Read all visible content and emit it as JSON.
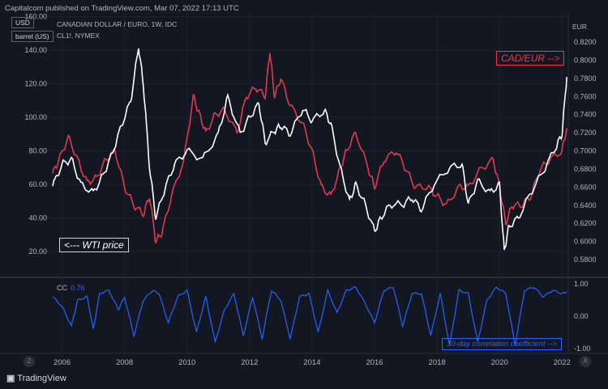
{
  "header": {
    "publisher": "Capitalcom published on TradingView.com, Mar 07, 2022 17:13 UTC",
    "instrument_1": "CANADIAN DOLLAR / EURO, 1W, IDC",
    "instrument_2": "CL1!, NYMEX",
    "left_unit_1": "USD",
    "left_unit_2": "barrel (US)",
    "right_unit": "EUR"
  },
  "annotations": {
    "cad_eur": "CAD/EUR -->",
    "wti": "<--- WTI price",
    "corr": "30-day correlation coefficient -->"
  },
  "indicator": {
    "label": "CC",
    "value": "0.76"
  },
  "footer": {
    "brand": "TradingView",
    "z_button": "Z",
    "a_button": "A"
  },
  "colors": {
    "background": "#131722",
    "wti": "#ffffff",
    "cad_eur": "#e03a4e",
    "cc": "#2962ff"
  },
  "chart_data": [
    {
      "type": "line",
      "title": "CANADIAN DOLLAR / EURO, 1W, IDC",
      "left_axis": {
        "label": "USD barrel (US)",
        "ticks": [
          "160.00",
          "140.00",
          "120.00",
          "100.00",
          "80.00",
          "60.00",
          "40.00",
          "20.00"
        ],
        "range": [
          0,
          160
        ]
      },
      "right_axis": {
        "label": "EUR",
        "ticks": [
          "0.8200",
          "0.8000",
          "0.7800",
          "0.7600",
          "0.7400",
          "0.7200",
          "0.7000",
          "0.6800",
          "0.6600",
          "0.6400",
          "0.6200",
          "0.6000",
          "0.5800"
        ],
        "range": [
          0.57,
          0.83
        ]
      },
      "x_ticks": [
        "2006",
        "2008",
        "2010",
        "2012",
        "2014",
        "2016",
        "2018",
        "2020",
        "2022"
      ],
      "grid": true,
      "series": [
        {
          "name": "CL1!, NYMEX",
          "axis": "left",
          "x": [
            2005.7,
            2006.0,
            2006.3,
            2006.6,
            2007.0,
            2007.3,
            2007.6,
            2007.9,
            2008.2,
            2008.45,
            2008.6,
            2008.8,
            2009.0,
            2009.3,
            2009.6,
            2010.0,
            2010.5,
            2011.0,
            2011.3,
            2011.7,
            2012.0,
            2012.3,
            2012.5,
            2012.8,
            2013.0,
            2013.3,
            2013.7,
            2014.0,
            2014.4,
            2014.6,
            2014.9,
            2015.2,
            2015.4,
            2015.7,
            2016.0,
            2016.2,
            2016.5,
            2016.9,
            2017.2,
            2017.5,
            2017.9,
            2018.4,
            2018.8,
            2019.0,
            2019.3,
            2019.7,
            2020.0,
            2020.15,
            2020.3,
            2020.6,
            2021.0,
            2021.4,
            2021.8,
            2022.0,
            2022.15
          ],
          "y": [
            59,
            72,
            75,
            60,
            55,
            65,
            78,
            95,
            110,
            142,
            120,
            70,
            40,
            58,
            72,
            80,
            75,
            90,
            112,
            90,
            100,
            108,
            85,
            92,
            95,
            90,
            105,
            98,
            104,
            96,
            70,
            50,
            60,
            48,
            32,
            40,
            48,
            48,
            52,
            45,
            60,
            70,
            72,
            48,
            62,
            55,
            60,
            20,
            35,
            40,
            55,
            68,
            82,
            90,
            124
          ]
        },
        {
          "name": "CANADIAN DOLLAR / EURO",
          "axis": "right",
          "x": [
            2005.7,
            2005.9,
            2006.2,
            2006.5,
            2006.8,
            2007.1,
            2007.4,
            2007.7,
            2008.0,
            2008.3,
            2008.6,
            2008.8,
            2009.0,
            2009.2,
            2009.5,
            2009.9,
            2010.2,
            2010.4,
            2010.6,
            2010.9,
            2011.2,
            2011.6,
            2011.9,
            2012.2,
            2012.5,
            2012.65,
            2012.8,
            2013.0,
            2013.3,
            2013.7,
            2014.0,
            2014.3,
            2014.6,
            2014.9,
            2015.1,
            2015.4,
            2015.8,
            2016.0,
            2016.3,
            2016.7,
            2017.0,
            2017.3,
            2017.7,
            2018.0,
            2018.3,
            2018.7,
            2019.0,
            2019.4,
            2019.8,
            2020.0,
            2020.2,
            2020.4,
            2020.7,
            2021.0,
            2021.3,
            2021.6,
            2022.0,
            2022.15
          ],
          "y": [
            0.675,
            0.69,
            0.715,
            0.69,
            0.665,
            0.67,
            0.69,
            0.7,
            0.66,
            0.64,
            0.63,
            0.65,
            0.6,
            0.61,
            0.65,
            0.69,
            0.76,
            0.74,
            0.72,
            0.74,
            0.745,
            0.72,
            0.76,
            0.77,
            0.76,
            0.81,
            0.76,
            0.78,
            0.75,
            0.73,
            0.7,
            0.66,
            0.65,
            0.68,
            0.7,
            0.72,
            0.68,
            0.66,
            0.69,
            0.7,
            0.68,
            0.66,
            0.66,
            0.65,
            0.64,
            0.66,
            0.66,
            0.68,
            0.69,
            0.66,
            0.62,
            0.64,
            0.64,
            0.65,
            0.68,
            0.69,
            0.7,
            0.725
          ]
        }
      ]
    },
    {
      "type": "line",
      "title": "30-day correlation coefficient",
      "y_axis": {
        "ticks": [
          "1.00",
          "0.00",
          "-1.00"
        ],
        "range": [
          -1,
          1
        ]
      },
      "series": [
        {
          "name": "CC",
          "x": [
            2005.7,
            2006.0,
            2006.3,
            2006.5,
            2006.8,
            2007.0,
            2007.2,
            2007.5,
            2007.8,
            2008.0,
            2008.3,
            2008.6,
            2008.9,
            2009.1,
            2009.4,
            2009.7,
            2010.0,
            2010.3,
            2010.6,
            2010.9,
            2011.2,
            2011.5,
            2011.8,
            2012.1,
            2012.4,
            2012.7,
            2013.0,
            2013.3,
            2013.6,
            2013.9,
            2014.2,
            2014.5,
            2014.8,
            2015.1,
            2015.4,
            2015.7,
            2016.0,
            2016.3,
            2016.6,
            2016.9,
            2017.2,
            2017.5,
            2017.8,
            2018.1,
            2018.4,
            2018.7,
            2019.0,
            2019.3,
            2019.6,
            2019.9,
            2020.2,
            2020.5,
            2020.8,
            2021.1,
            2021.4,
            2021.7,
            2022.0,
            2022.15
          ],
          "y": [
            0.6,
            0.3,
            -0.3,
            0.5,
            0.6,
            -0.4,
            0.7,
            0.8,
            0.2,
            0.6,
            -0.6,
            0.5,
            0.8,
            0.7,
            -0.2,
            0.6,
            0.8,
            -0.5,
            0.6,
            -0.8,
            0.2,
            0.7,
            -0.6,
            0.6,
            -0.7,
            0.8,
            0.5,
            -0.7,
            0.6,
            0.7,
            -0.5,
            0.8,
            0.1,
            0.8,
            0.9,
            0.4,
            -0.2,
            0.8,
            0.9,
            -0.3,
            0.7,
            0.7,
            -0.6,
            0.7,
            -0.9,
            0.8,
            0.7,
            -0.8,
            0.5,
            0.9,
            0.7,
            -0.9,
            0.8,
            0.9,
            0.6,
            0.8,
            0.7,
            0.76
          ]
        }
      ]
    }
  ]
}
